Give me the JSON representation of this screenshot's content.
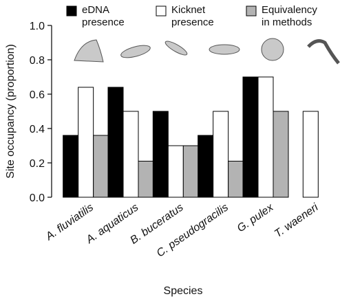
{
  "chart_data": {
    "type": "bar",
    "x_label": "Species",
    "y_label": "Site occupancy (proportion)",
    "categories": [
      "A. fluviatilis",
      "A. aquaticus",
      "B. buceratus",
      "C. pseudogracilis",
      "G. pulex",
      "T. waeneri"
    ],
    "series": [
      {
        "name": "eDNA presence",
        "color": "#000000",
        "values": [
          0.36,
          0.64,
          0.5,
          0.36,
          0.7,
          0
        ]
      },
      {
        "name": "Kicknet presence",
        "color": "#ffffff",
        "values": [
          0.64,
          0.5,
          0.3,
          0.5,
          0.7,
          0.5
        ]
      },
      {
        "name": "Equivalency in methods",
        "color": "#b3b3b3",
        "values": [
          0.36,
          0.21,
          0.3,
          0.21,
          0.5,
          0
        ]
      }
    ],
    "ylim": [
      0,
      1
    ],
    "yticks": [
      {
        "value": 0,
        "label": "0.0"
      },
      0.2,
      0.4,
      0.6,
      0.8,
      {
        "value": 1,
        "label": "1.0"
      }
    ],
    "grid": false
  }
}
